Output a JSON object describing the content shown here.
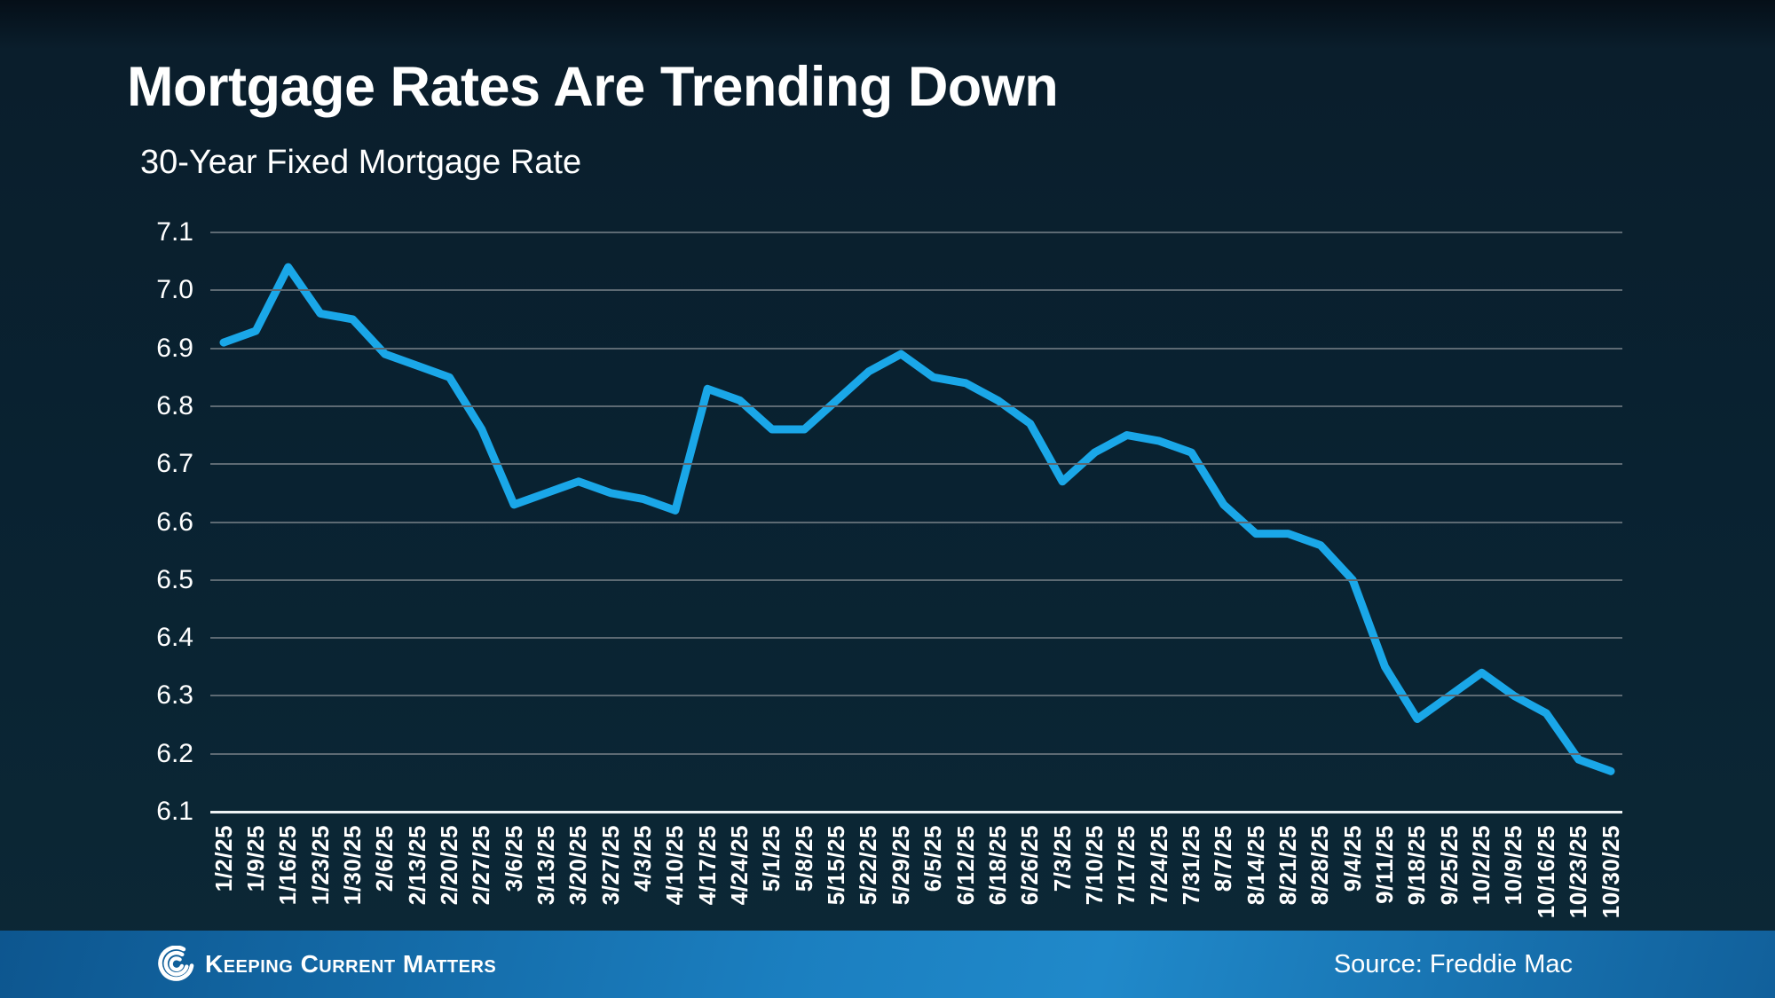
{
  "header": {
    "title": "Mortgage Rates Are Trending Down",
    "subtitle": "30-Year Fixed Mortgage Rate"
  },
  "chart_data": {
    "type": "line",
    "title": "30-Year Fixed Mortgage Rate",
    "x": [
      "1/2/25",
      "1/9/25",
      "1/16/25",
      "1/23/25",
      "1/30/25",
      "2/6/25",
      "2/13/25",
      "2/20/25",
      "2/27/25",
      "3/6/25",
      "3/13/25",
      "3/20/25",
      "3/27/25",
      "4/3/25",
      "4/10/25",
      "4/17/25",
      "4/24/25",
      "5/1/25",
      "5/8/25",
      "5/15/25",
      "5/22/25",
      "5/29/25",
      "6/5/25",
      "6/12/25",
      "6/18/25",
      "6/26/25",
      "7/3/25",
      "7/10/25",
      "7/17/25",
      "7/24/25",
      "7/31/25",
      "8/7/25",
      "8/14/25",
      "8/21/25",
      "8/28/25",
      "9/4/25",
      "9/11/25",
      "9/18/25",
      "9/25/25",
      "10/2/25",
      "10/9/25",
      "10/16/25",
      "10/23/25",
      "10/30/25"
    ],
    "values": [
      6.91,
      6.93,
      7.04,
      6.96,
      6.95,
      6.89,
      6.87,
      6.85,
      6.76,
      6.63,
      6.65,
      6.67,
      6.65,
      6.64,
      6.62,
      6.83,
      6.81,
      6.76,
      6.76,
      6.81,
      6.86,
      6.89,
      6.85,
      6.84,
      6.81,
      6.77,
      6.67,
      6.72,
      6.75,
      6.74,
      6.72,
      6.63,
      6.58,
      6.58,
      6.56,
      6.5,
      6.35,
      6.26,
      6.3,
      6.34,
      6.3,
      6.27,
      6.19,
      6.17
    ],
    "series_name": "30-Year Fixed Mortgage Rate",
    "yticks": [
      "7.1",
      "7.0",
      "6.9",
      "6.8",
      "6.7",
      "6.6",
      "6.5",
      "6.4",
      "6.3",
      "6.2",
      "6.1"
    ],
    "ylim": [
      6.1,
      7.1
    ],
    "grid": "horizontal",
    "legend": "none",
    "line_color": "#1aa7e8"
  },
  "footer": {
    "brand": "Keeping Current Matters",
    "source": "Source: Freddie Mac",
    "logo_icon": "kcm-spiral-logo"
  },
  "colors": {
    "background": "#092231",
    "accent_blue": "#1aa7e8",
    "gridline": "#5d6a73",
    "axis_line": "#eef2f4",
    "text": "#ffffff",
    "footer_blue_dark": "#0d568f",
    "footer_blue_light": "#2089ca"
  }
}
